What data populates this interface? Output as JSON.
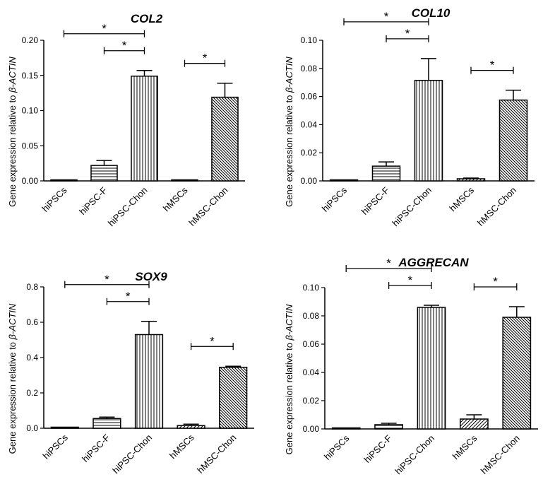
{
  "chart_data": [
    {
      "type": "bar",
      "title": "COL2",
      "ylabel_prefix": "Gene expression relative to ",
      "ylabel_gene": "β-ACTIN",
      "categories": [
        "hiPSCs",
        "hiPSC-F",
        "hiPSC-Chon",
        "hMSCs",
        "hMSC-Chon"
      ],
      "values": [
        0.001,
        0.022,
        0.149,
        0.0005,
        0.119
      ],
      "errors": [
        0.0005,
        0.007,
        0.008,
        0.0003,
        0.02
      ],
      "ylim": [
        0,
        0.2
      ],
      "yticks": [
        "0.00",
        "0.05",
        "0.10",
        "0.15",
        "0.20"
      ],
      "significance": [
        {
          "from": 1,
          "to": 2,
          "label": "*"
        },
        {
          "from": 0,
          "to": 2,
          "label": "*"
        },
        {
          "from": 3,
          "to": 4,
          "label": "*"
        }
      ]
    },
    {
      "type": "bar",
      "title": "COL10",
      "ylabel_prefix": "Gene expression relative to ",
      "ylabel_gene": "β-ACTIN",
      "categories": [
        "hiPSCs",
        "hiPSC-F",
        "hiPSC-Chon",
        "hMSCs",
        "hMSC-Chon"
      ],
      "values": [
        0.0005,
        0.0105,
        0.0715,
        0.0015,
        0.0575
      ],
      "errors": [
        0.0003,
        0.003,
        0.0155,
        0.0005,
        0.007
      ],
      "ylim": [
        0,
        0.1
      ],
      "yticks": [
        "0.00",
        "0.02",
        "0.04",
        "0.06",
        "0.08",
        "0.10"
      ],
      "significance": [
        {
          "from": 1,
          "to": 2,
          "label": "*"
        },
        {
          "from": 0,
          "to": 2,
          "label": "*"
        },
        {
          "from": 3,
          "to": 4,
          "label": "*"
        }
      ]
    },
    {
      "type": "bar",
      "title": "SOX9",
      "ylabel_prefix": "Gene expression relative to ",
      "ylabel_gene": "β-ACTIN",
      "categories": [
        "hiPSCs",
        "hiPSC-F",
        "hiPSC-Chon",
        "hMSCs",
        "hMSC-Chon"
      ],
      "values": [
        0.004,
        0.055,
        0.53,
        0.015,
        0.345
      ],
      "errors": [
        0.002,
        0.008,
        0.075,
        0.008,
        0.006
      ],
      "ylim": [
        0,
        0.8
      ],
      "yticks": [
        "0.0",
        "0.2",
        "0.4",
        "0.6",
        "0.8"
      ],
      "significance": [
        {
          "from": 1,
          "to": 2,
          "label": "*"
        },
        {
          "from": 0,
          "to": 2,
          "label": "*"
        },
        {
          "from": 3,
          "to": 4,
          "label": "*"
        }
      ]
    },
    {
      "type": "bar",
      "title": "AGGRECAN",
      "ylabel_prefix": "Gene expression relative to ",
      "ylabel_gene": "β-ACTIN",
      "categories": [
        "hiPSCs",
        "hiPSC-F",
        "hiPSC-Chon",
        "hMSCs",
        "hMSC-Chon"
      ],
      "values": [
        0.0003,
        0.003,
        0.086,
        0.007,
        0.079
      ],
      "errors": [
        0.0002,
        0.001,
        0.0015,
        0.003,
        0.0075
      ],
      "ylim": [
        0,
        0.1
      ],
      "yticks": [
        "0.00",
        "0.02",
        "0.04",
        "0.06",
        "0.08",
        "0.10"
      ],
      "significance": [
        {
          "from": 1,
          "to": 2,
          "label": "*"
        },
        {
          "from": 0,
          "to": 2,
          "label": "*"
        },
        {
          "from": 3,
          "to": 4,
          "label": "*"
        }
      ]
    }
  ]
}
